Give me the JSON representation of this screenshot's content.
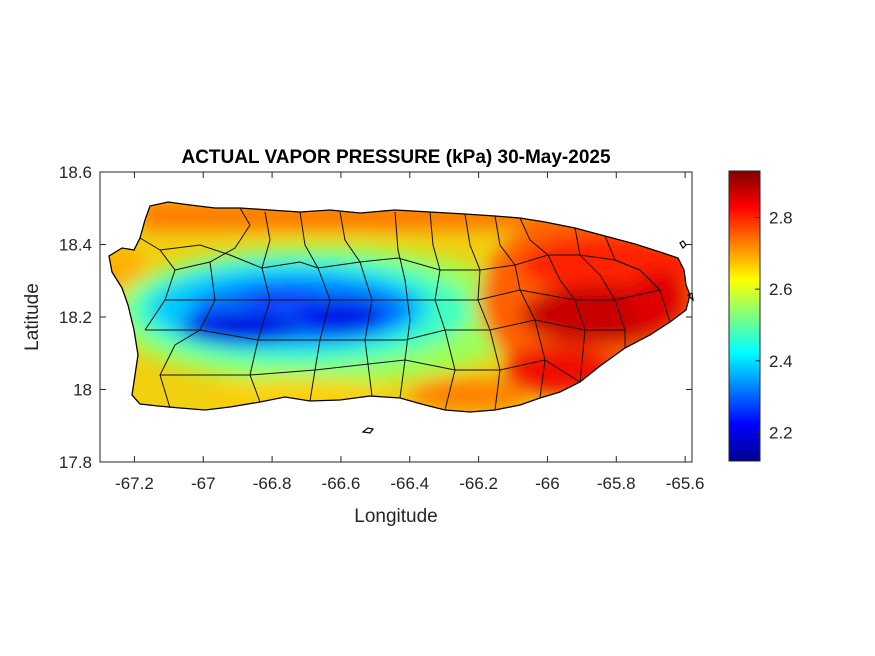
{
  "chart_data": {
    "type": "heatmap",
    "title": "ACTUAL VAPOR PRESSURE (kPa) 30-May-2025",
    "xlabel": "Longitude",
    "ylabel": "Latitude",
    "xlim": [
      -67.3,
      -65.58
    ],
    "ylim": [
      17.8,
      18.6
    ],
    "xticks": [
      -67.2,
      -67,
      -66.8,
      -66.6,
      -66.4,
      -66.2,
      -66,
      -65.8,
      -65.6
    ],
    "xtick_labels": [
      "-67.2",
      "-67",
      "-66.8",
      "-66.6",
      "-66.4",
      "-66.2",
      "-66",
      "-65.8",
      "-65.6"
    ],
    "yticks": [
      17.8,
      18,
      18.2,
      18.4,
      18.6
    ],
    "ytick_labels": [
      "17.8",
      "18",
      "18.2",
      "18.4",
      "18.6"
    ],
    "colorbar": {
      "colormap": "jet",
      "range": [
        2.12,
        2.93
      ],
      "ticks": [
        2.2,
        2.4,
        2.6,
        2.8
      ],
      "tick_labels": [
        "2.2",
        "2.4",
        "2.6",
        "2.8"
      ]
    },
    "grid": false,
    "field_summary": {
      "west_coast": 2.65,
      "central_mountains_min": 2.15,
      "north_coast": 2.75,
      "south_coast": 2.7,
      "east_max": 2.92
    }
  }
}
